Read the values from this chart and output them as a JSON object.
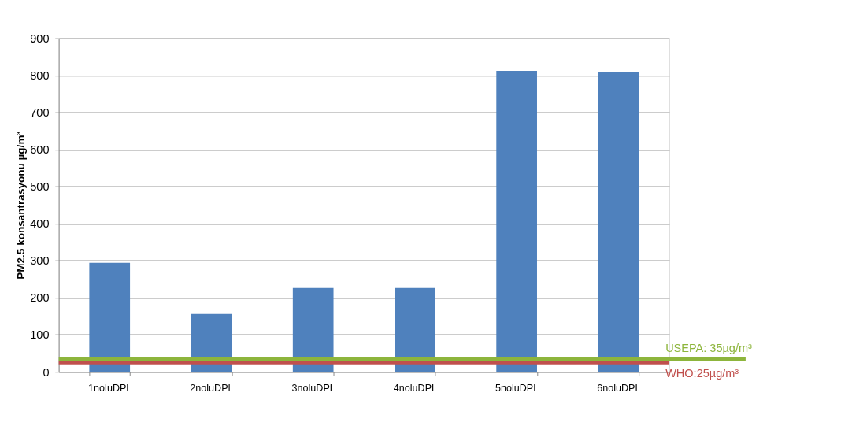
{
  "chart_data": {
    "type": "bar",
    "ylabel": "PM2.5 konsantrasyonu  µg/m³",
    "categories": [
      "1noluDPL",
      "2noluDPL",
      "3noluDPL",
      "4noluDPL",
      "5noluDPL",
      "6noluDPL"
    ],
    "values": [
      294,
      156,
      226,
      226,
      812,
      808
    ],
    "color": "#4f81bd",
    "ylim": [
      0,
      900
    ],
    "yticks": [
      0,
      100,
      200,
      300,
      400,
      500,
      600,
      700,
      800,
      900
    ],
    "grid": "y",
    "ref_lines": [
      {
        "axis": "y",
        "value": 35,
        "label": "USEPA: 35µg/m³",
        "color": "#8db53c"
      },
      {
        "axis": "y",
        "value": 25,
        "label": "WHO:25µg/m³",
        "color": "#c0504d"
      }
    ]
  }
}
